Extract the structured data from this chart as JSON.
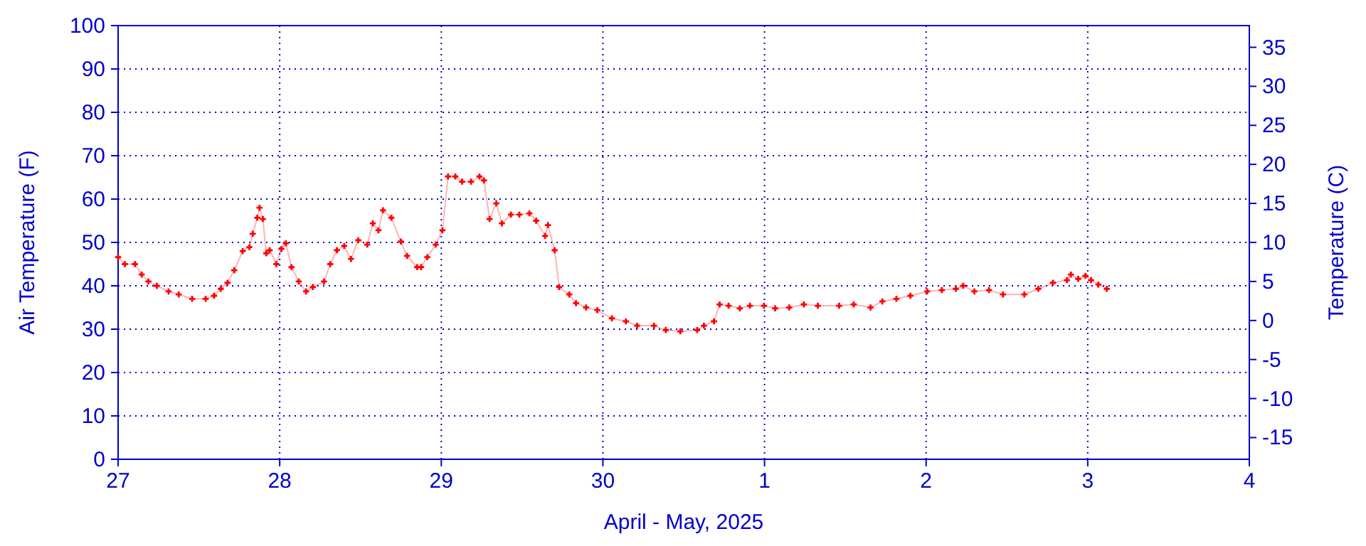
{
  "chart_data": {
    "type": "line",
    "xlabel": "April - May, 2025",
    "ylabel": "Air Temperature (F)",
    "y2label": "Temperature (C)",
    "xlim": [
      "2025-04-27T00:00",
      "2025-05-04T00:00"
    ],
    "xticks": [
      {
        "value": "2025-04-27T00:00",
        "label": "27"
      },
      {
        "value": "2025-04-28T00:00",
        "label": "28"
      },
      {
        "value": "2025-04-29T00:00",
        "label": "29"
      },
      {
        "value": "2025-04-30T00:00",
        "label": "30"
      },
      {
        "value": "2025-05-01T00:00",
        "label": "1"
      },
      {
        "value": "2025-05-02T00:00",
        "label": "2"
      },
      {
        "value": "2025-05-03T00:00",
        "label": "3"
      },
      {
        "value": "2025-05-04T00:00",
        "label": "4"
      }
    ],
    "ylim": [
      0,
      100
    ],
    "yticks": [
      0,
      10,
      20,
      30,
      40,
      50,
      60,
      70,
      80,
      90,
      100
    ],
    "y2lim": [
      -17.78,
      37.78
    ],
    "y2ticks": [
      -15,
      -10,
      -5,
      0,
      5,
      10,
      15,
      20,
      25,
      30,
      35
    ],
    "grid": true,
    "marker": "cross",
    "line_style": "solid",
    "series": [
      {
        "color": "#ff0000",
        "x": [
          "2025-04-27T00:00",
          "2025-04-27T01:00",
          "2025-04-27T02:30",
          "2025-04-27T03:30",
          "2025-04-27T04:30",
          "2025-04-27T05:45",
          "2025-04-27T07:30",
          "2025-04-27T09:00",
          "2025-04-27T11:00",
          "2025-04-27T13:00",
          "2025-04-27T14:15",
          "2025-04-27T15:15",
          "2025-04-27T16:15",
          "2025-04-27T17:15",
          "2025-04-27T18:30",
          "2025-04-27T19:30",
          "2025-04-27T20:00",
          "2025-04-27T20:40",
          "2025-04-27T21:00",
          "2025-04-27T21:30",
          "2025-04-27T22:00",
          "2025-04-27T22:30",
          "2025-04-27T23:30",
          "2025-04-28T00:15",
          "2025-04-28T00:55",
          "2025-04-28T01:45",
          "2025-04-28T02:50",
          "2025-04-28T03:55",
          "2025-04-28T04:55",
          "2025-04-28T06:35",
          "2025-04-28T07:30",
          "2025-04-28T08:30",
          "2025-04-28T09:35",
          "2025-04-28T10:35",
          "2025-04-28T11:40",
          "2025-04-28T13:00",
          "2025-04-28T13:50",
          "2025-04-28T14:40",
          "2025-04-28T15:20",
          "2025-04-28T16:35",
          "2025-04-28T18:00",
          "2025-04-28T18:55",
          "2025-04-28T20:25",
          "2025-04-28T21:00",
          "2025-04-28T21:55",
          "2025-04-28T23:10",
          "2025-04-29T00:10",
          "2025-04-29T01:00",
          "2025-04-29T02:05",
          "2025-04-29T03:05",
          "2025-04-29T04:25",
          "2025-04-29T05:40",
          "2025-04-29T06:20",
          "2025-04-29T07:10",
          "2025-04-29T08:10",
          "2025-04-29T09:00",
          "2025-04-29T10:20",
          "2025-04-29T11:35",
          "2025-04-29T13:05",
          "2025-04-29T14:05",
          "2025-04-29T15:25",
          "2025-04-29T15:50",
          "2025-04-29T16:50",
          "2025-04-29T17:30",
          "2025-04-29T19:00",
          "2025-04-29T20:00",
          "2025-04-29T21:30",
          "2025-04-29T23:10",
          "2025-04-30T01:20",
          "2025-04-30T03:25",
          "2025-04-30T05:05",
          "2025-04-30T07:35",
          "2025-04-30T09:20",
          "2025-04-30T11:30",
          "2025-04-30T14:00",
          "2025-04-30T15:00",
          "2025-04-30T16:30",
          "2025-04-30T17:20",
          "2025-04-30T18:40",
          "2025-04-30T20:20",
          "2025-04-30T21:50",
          "2025-04-30T23:55",
          "2025-05-01T01:35",
          "2025-05-01T03:40",
          "2025-05-01T05:50",
          "2025-05-01T07:55",
          "2025-05-01T11:05",
          "2025-05-01T13:15",
          "2025-05-01T15:45",
          "2025-05-01T17:30",
          "2025-05-01T19:35",
          "2025-05-01T21:40",
          "2025-05-02T00:10",
          "2025-05-02T02:20",
          "2025-05-02T04:25",
          "2025-05-02T05:30",
          "2025-05-02T07:10",
          "2025-05-02T09:20",
          "2025-05-02T11:25",
          "2025-05-02T14:35",
          "2025-05-02T16:40",
          "2025-05-02T18:50",
          "2025-05-02T20:55",
          "2025-05-02T21:30",
          "2025-05-02T22:35",
          "2025-05-02T23:40",
          "2025-05-03T00:30",
          "2025-05-03T01:35",
          "2025-05-03T02:50"
        ],
        "values": [
          46.6,
          45,
          45,
          42.6,
          41,
          40,
          38.7,
          38,
          37,
          37,
          37.7,
          39.3,
          40.7,
          43.6,
          48,
          48.9,
          52,
          55.7,
          58,
          55.4,
          47.5,
          48.2,
          45,
          48.5,
          49.8,
          44.3,
          41,
          38.7,
          39.7,
          41,
          45,
          48.2,
          49.2,
          46.2,
          50.5,
          49.5,
          54.4,
          52.8,
          57.4,
          55.7,
          50.2,
          46.9,
          44.3,
          44.3,
          46.6,
          49.5,
          52.8,
          65.2,
          65.2,
          64,
          64,
          65.2,
          64.3,
          55.4,
          59,
          54.4,
          56.4,
          56.4,
          56.7,
          55,
          51.5,
          54,
          48.2,
          39.7,
          38,
          36,
          35,
          34.4,
          32.5,
          31.8,
          30.8,
          30.8,
          29.8,
          29.5,
          29.8,
          30.8,
          31.8,
          35.7,
          35.4,
          34.8,
          35.4,
          35.4,
          34.8,
          35,
          35.7,
          35.4,
          35.4,
          35.7,
          35,
          36.4,
          37,
          37.7,
          38.7,
          39,
          39.3,
          40,
          38.7,
          39,
          38,
          38,
          39.3,
          40.7,
          41.3,
          42.6,
          41.6,
          42.3,
          41.3,
          40.3,
          39.3
        ]
      }
    ]
  }
}
